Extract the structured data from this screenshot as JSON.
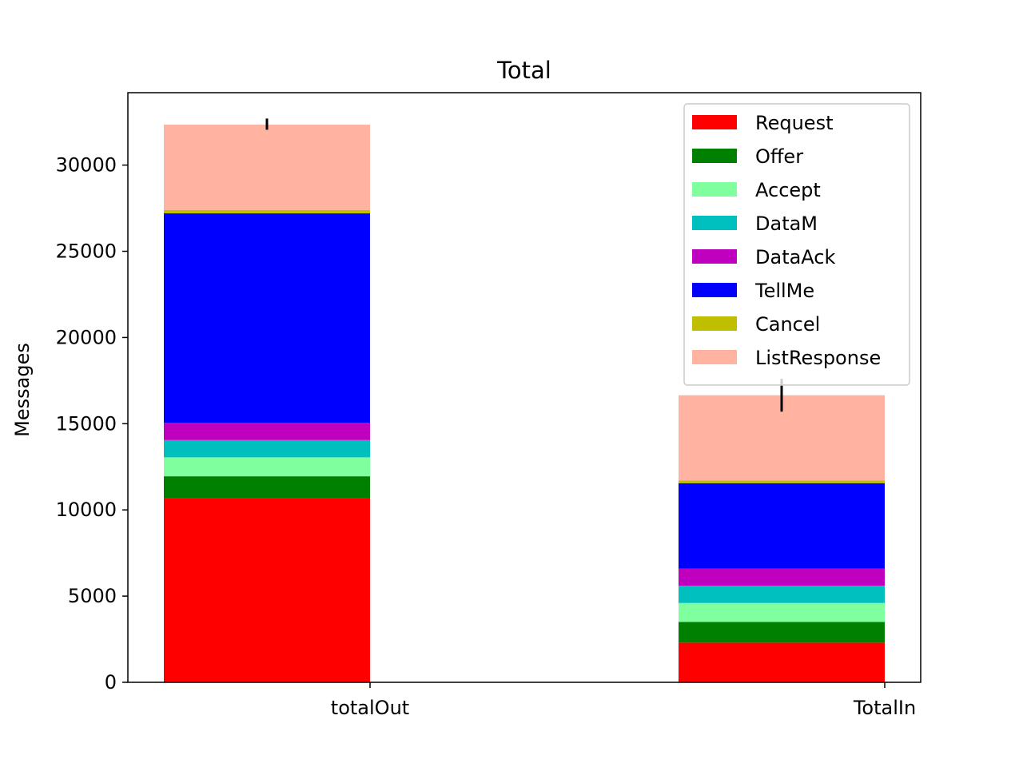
{
  "chart_data": {
    "type": "bar",
    "stacked": true,
    "title": "Total",
    "xlabel": "",
    "ylabel": "Messages",
    "ylim": [
      0,
      34200
    ],
    "yticks": [
      0,
      5000,
      10000,
      15000,
      20000,
      25000,
      30000
    ],
    "categories": [
      "totalOut",
      "TotalIn"
    ],
    "series": [
      {
        "name": "Request",
        "color": "#ff0000",
        "values": [
          10700,
          2300
        ]
      },
      {
        "name": "Offer",
        "color": "#008000",
        "values": [
          1250,
          1200
        ]
      },
      {
        "name": "Accept",
        "color": "#80ff9f",
        "values": [
          1100,
          1100
        ]
      },
      {
        "name": "DataM",
        "color": "#00bfbf",
        "values": [
          1000,
          1000
        ]
      },
      {
        "name": "DataAck",
        "color": "#bf00bf",
        "values": [
          1000,
          1000
        ]
      },
      {
        "name": "TellMe",
        "color": "#0000ff",
        "values": [
          12150,
          4950
        ]
      },
      {
        "name": "Cancel",
        "color": "#bfbf00",
        "values": [
          200,
          150
        ]
      },
      {
        "name": "ListResponse",
        "color": "#ffb3a0",
        "values": [
          4950,
          4950
        ]
      }
    ],
    "error_bars": [
      {
        "category": "totalOut",
        "low": 32050,
        "high": 32700
      },
      {
        "category": "TotalIn",
        "low": 15700,
        "high": 17600
      }
    ],
    "legend_position": "top-right",
    "grid": false
  }
}
